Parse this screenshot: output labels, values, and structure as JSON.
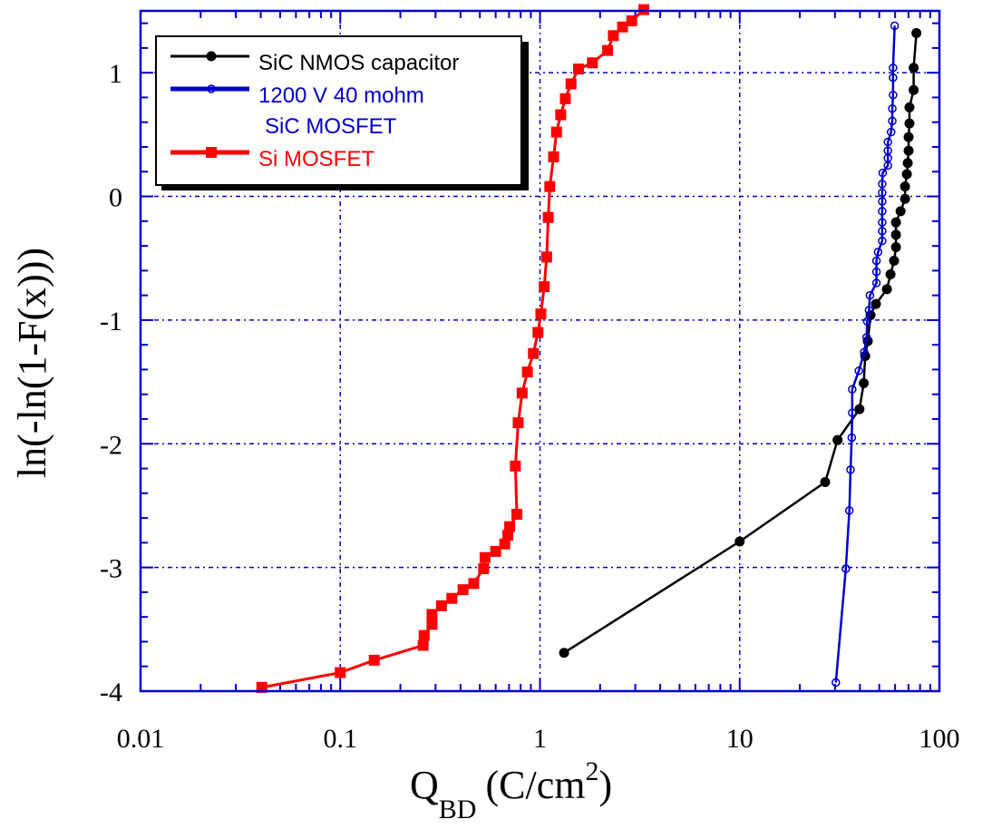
{
  "chart_data": {
    "type": "line",
    "xlabel_main": "Q",
    "xlabel_sub": "BD",
    "xlabel_unit": "(C/cm",
    "xlabel_sup": "2",
    "xlabel_close": ")",
    "ylabel": "ln(-ln(1-F(x)))",
    "xscale": "log",
    "xlim": [
      0.01,
      100
    ],
    "ylim": [
      -4,
      1.5
    ],
    "xticks": [
      0.01,
      0.1,
      1,
      10,
      100
    ],
    "xtick_labels": [
      "0.01",
      "0.1",
      "1",
      "10",
      "100"
    ],
    "yticks": [
      -4,
      -3,
      -2,
      -1,
      0,
      1
    ],
    "ytick_labels": [
      "-4",
      "-3",
      "-2",
      "-1",
      "0",
      "1"
    ],
    "grid": true,
    "legend_position": "top-left",
    "series": [
      {
        "name": "SiC NMOS capacitor",
        "color": "#000000",
        "marker": "filled-circle",
        "x": [
          1.32,
          10,
          26.8,
          30.9,
          39.8,
          41.8,
          42.5,
          43.8,
          45.2,
          48.1,
          54.6,
          56.9,
          59.3,
          60.6,
          60.6,
          60.6,
          63.9,
          67.3,
          67.3,
          68.7,
          69.4,
          70.1,
          70.1,
          70.8,
          70.8,
          74.3,
          74.3,
          76.7
        ],
        "y": [
          -3.69,
          -2.79,
          -2.31,
          -1.97,
          -1.72,
          -1.51,
          -1.29,
          -1.17,
          -0.96,
          -0.87,
          -0.75,
          -0.63,
          -0.52,
          -0.41,
          -0.31,
          -0.21,
          -0.12,
          -0.02,
          0.08,
          0.18,
          0.27,
          0.37,
          0.48,
          0.59,
          0.72,
          0.86,
          1.04,
          1.32
        ]
      },
      {
        "name": "1200 V 40 mohm SiC MOSFET",
        "legend_lines": [
          "1200 V 40 mohm",
          " SiC MOSFET"
        ],
        "color": "#0000cc",
        "marker": "open-circle",
        "x": [
          30.3,
          34.0,
          35.4,
          35.9,
          36.4,
          36.6,
          36.6,
          39.5,
          42.0,
          43.2,
          43.5,
          44.4,
          44.9,
          48.4,
          48.4,
          48.4,
          49.3,
          51.7,
          51.7,
          51.7,
          51.7,
          51.7,
          51.7,
          51.7,
          52.0,
          55.2,
          55.2,
          55.2,
          55.2,
          57.3,
          58.1,
          58.1,
          58.6,
          58.6,
          58.6,
          59.7
        ],
        "y": [
          -3.93,
          -3.01,
          -2.54,
          -2.21,
          -1.95,
          -1.75,
          -1.56,
          -1.41,
          -1.26,
          -1.14,
          -1.01,
          -0.92,
          -0.8,
          -0.7,
          -0.61,
          -0.52,
          -0.45,
          -0.36,
          -0.28,
          -0.21,
          -0.12,
          -0.04,
          0.03,
          0.1,
          0.19,
          0.25,
          0.31,
          0.37,
          0.44,
          0.52,
          0.61,
          0.71,
          0.82,
          0.96,
          1.04,
          1.38
        ]
      },
      {
        "name": "Si MOSFET",
        "color": "#ff0000",
        "marker": "filled-square",
        "x": [
          0.0405,
          0.1,
          0.148,
          0.26,
          0.263,
          0.288,
          0.288,
          0.321,
          0.362,
          0.412,
          0.466,
          0.522,
          0.531,
          0.6,
          0.666,
          0.69,
          0.705,
          0.766,
          0.753,
          0.778,
          0.814,
          0.865,
          0.927,
          0.977,
          1.01,
          1.05,
          1.08,
          1.1,
          1.12,
          1.17,
          1.21,
          1.27,
          1.34,
          1.43,
          1.56,
          1.83,
          2.18,
          2.33,
          2.59,
          2.88,
          3.31
        ],
        "y": [
          -3.97,
          -3.85,
          -3.75,
          -3.63,
          -3.55,
          -3.46,
          -3.38,
          -3.31,
          -3.25,
          -3.18,
          -3.13,
          -3.01,
          -2.92,
          -2.87,
          -2.81,
          -2.74,
          -2.67,
          -2.57,
          -2.18,
          -1.83,
          -1.59,
          -1.42,
          -1.27,
          -1.1,
          -0.95,
          -0.73,
          -0.49,
          -0.17,
          0.08,
          0.32,
          0.52,
          0.66,
          0.79,
          0.91,
          1.03,
          1.08,
          1.18,
          1.3,
          1.37,
          1.42,
          1.51
        ]
      }
    ],
    "axis_color": "#0000cc"
  }
}
